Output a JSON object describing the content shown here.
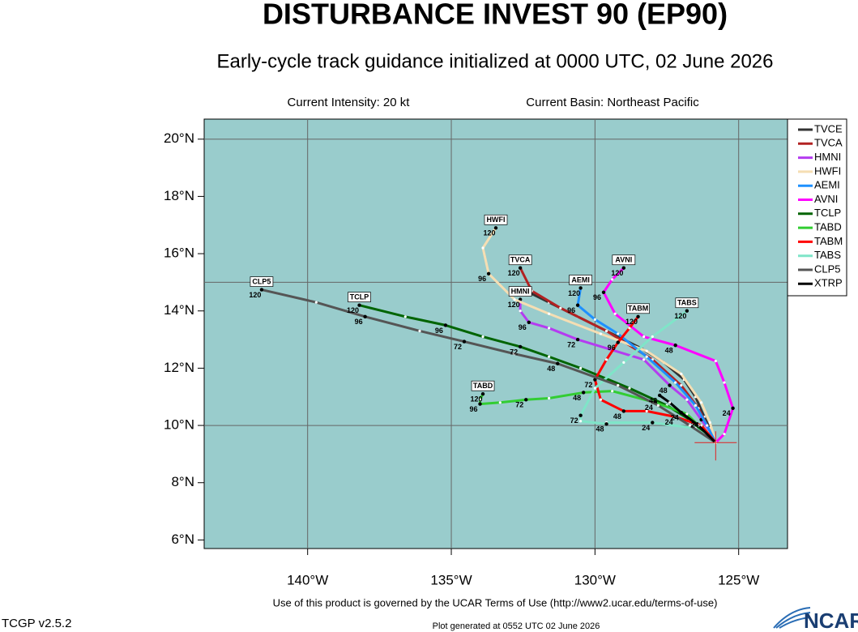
{
  "chart_data": {
    "type": "track-map",
    "title": "DISTURBANCE INVEST 90 (EP90)",
    "subtitle": "Early-cycle track guidance initialized at 0000 UTC, 02 June 2026",
    "intensity": "Current Intensity: 20 kt",
    "basin": "Current Basin: Northeast Pacific",
    "terms": "Use of this product is governed by the UCAR Terms of Use (http://www2.ucar.edu/terms-of-use)",
    "version": "TCGP v2.5.2",
    "generated": "Plot generated at 0552 UTC   02 June 2026",
    "logo": "NCAR",
    "xlim": [
      -143.6,
      -123.3
    ],
    "ylim": [
      5.7,
      20.7
    ],
    "xticks": [
      {
        "value": -140,
        "label": "140°W"
      },
      {
        "value": -135,
        "label": "135°W"
      },
      {
        "value": -130,
        "label": "130°W"
      },
      {
        "value": -125,
        "label": "125°W"
      }
    ],
    "yticks": [
      {
        "value": 6,
        "label": "6°N"
      },
      {
        "value": 8,
        "label": "8°N"
      },
      {
        "value": 10,
        "label": "10°N"
      },
      {
        "value": 12,
        "label": "12°N"
      },
      {
        "value": 14,
        "label": "14°N"
      },
      {
        "value": 16,
        "label": "16°N"
      },
      {
        "value": 18,
        "label": "18°N"
      },
      {
        "value": 20,
        "label": "20°N"
      }
    ],
    "lat_grid": [
      10,
      15,
      20
    ],
    "current_position": {
      "lon": -125.8,
      "lat": 9.4
    },
    "models": [
      {
        "name": "TVCE",
        "color": "#333333",
        "track": [
          {
            "lon": -125.8,
            "lat": 9.4
          },
          {
            "lon": -126.0,
            "lat": 9.9
          },
          {
            "lon": -126.2,
            "lat": 10.3
          },
          {
            "lon": -126.5,
            "lat": 11.0
          },
          {
            "lon": -126.9,
            "lat": 11.6
          },
          {
            "lon": -127.6,
            "lat": 12.2
          },
          {
            "lon": -128.4,
            "lat": 12.7
          },
          {
            "lon": -129.6,
            "lat": 13.3
          },
          {
            "lon": -130.6,
            "lat": 13.8
          },
          {
            "lon": -131.6,
            "lat": 14.3
          },
          {
            "lon": -132.4,
            "lat": 14.7
          }
        ]
      },
      {
        "name": "TVCA",
        "color": "#b22222",
        "track": [
          {
            "lon": -125.8,
            "lat": 9.4
          },
          {
            "lon": -126.1,
            "lat": 10.0
          },
          {
            "lon": -126.4,
            "lat": 10.6
          },
          {
            "lon": -127.0,
            "lat": 11.4
          },
          {
            "lon": -128.0,
            "lat": 12.3
          },
          {
            "lon": -129.6,
            "lat": 13.3
          },
          {
            "lon": -131.2,
            "lat": 14.1
          },
          {
            "lon": -132.2,
            "lat": 14.7
          },
          {
            "lon": -132.6,
            "lat": 15.5,
            "label": "120"
          }
        ]
      },
      {
        "name": "HMNI",
        "color": "#b43cf0",
        "track": [
          {
            "lon": -125.8,
            "lat": 9.4
          },
          {
            "lon": -126.0,
            "lat": 9.8
          },
          {
            "lon": -126.3,
            "lat": 10.2,
            "label": "24"
          },
          {
            "lon": -126.8,
            "lat": 10.9
          },
          {
            "lon": -127.4,
            "lat": 11.4,
            "label": "48"
          },
          {
            "lon": -128.3,
            "lat": 12.3
          },
          {
            "lon": -130.6,
            "lat": 13.0,
            "label": "72"
          },
          {
            "lon": -131.6,
            "lat": 13.4
          },
          {
            "lon": -132.3,
            "lat": 13.6,
            "label": "96"
          },
          {
            "lon": -132.6,
            "lat": 14.0
          },
          {
            "lon": -132.6,
            "lat": 14.4,
            "label": "120"
          }
        ]
      },
      {
        "name": "HWFI",
        "color": "#f5deb3",
        "track": [
          {
            "lon": -125.8,
            "lat": 9.4
          },
          {
            "lon": -126.0,
            "lat": 10.1
          },
          {
            "lon": -126.3,
            "lat": 10.8
          },
          {
            "lon": -127.0,
            "lat": 11.8
          },
          {
            "lon": -128.2,
            "lat": 12.6
          },
          {
            "lon": -129.8,
            "lat": 13.2
          },
          {
            "lon": -131.6,
            "lat": 13.9
          },
          {
            "lon": -132.8,
            "lat": 14.4
          },
          {
            "lon": -133.7,
            "lat": 15.3,
            "label": "96"
          },
          {
            "lon": -133.9,
            "lat": 16.2
          },
          {
            "lon": -133.45,
            "lat": 16.9,
            "label": "120"
          }
        ]
      },
      {
        "name": "AEMI",
        "color": "#1e90ff",
        "track": [
          {
            "lon": -125.8,
            "lat": 9.4
          },
          {
            "lon": -126.1,
            "lat": 10.0
          },
          {
            "lon": -126.5,
            "lat": 10.7
          },
          {
            "lon": -127.2,
            "lat": 11.5
          },
          {
            "lon": -128.2,
            "lat": 12.4
          },
          {
            "lon": -129.2,
            "lat": 13.2
          },
          {
            "lon": -130.0,
            "lat": 13.7
          },
          {
            "lon": -130.6,
            "lat": 14.2,
            "label": "96"
          },
          {
            "lon": -130.5,
            "lat": 14.8,
            "label": "120"
          }
        ]
      },
      {
        "name": "AVNI",
        "color": "#ff00ff",
        "track": [
          {
            "lon": -125.8,
            "lat": 9.4
          },
          {
            "lon": -125.5,
            "lat": 9.7
          },
          {
            "lon": -125.2,
            "lat": 10.6,
            "label": "24"
          },
          {
            "lon": -125.5,
            "lat": 11.5
          },
          {
            "lon": -125.8,
            "lat": 12.25
          },
          {
            "lon": -127.2,
            "lat": 12.8,
            "label": "48"
          },
          {
            "lon": -128.3,
            "lat": 13.1
          },
          {
            "lon": -129.3,
            "lat": 13.9
          },
          {
            "lon": -129.7,
            "lat": 14.65,
            "label": "96"
          },
          {
            "lon": -129.4,
            "lat": 15.1
          },
          {
            "lon": -129.0,
            "lat": 15.5,
            "label": "120"
          }
        ]
      },
      {
        "name": "TCLP",
        "color": "#006400",
        "track": [
          {
            "lon": -125.8,
            "lat": 9.4
          },
          {
            "lon": -126.7,
            "lat": 10.2
          },
          {
            "lon": -127.5,
            "lat": 10.7
          },
          {
            "lon": -128.8,
            "lat": 11.3
          },
          {
            "lon": -130.5,
            "lat": 12.0
          },
          {
            "lon": -131.6,
            "lat": 12.4
          },
          {
            "lon": -132.6,
            "lat": 12.75,
            "label": "72"
          },
          {
            "lon": -133.9,
            "lat": 13.1
          },
          {
            "lon": -135.2,
            "lat": 13.5,
            "label": "96"
          },
          {
            "lon": -136.6,
            "lat": 13.8
          },
          {
            "lon": -138.2,
            "lat": 14.2,
            "label": "120"
          }
        ]
      },
      {
        "name": "TABD",
        "color": "#32cd32",
        "track": [
          {
            "lon": -125.8,
            "lat": 9.4
          },
          {
            "lon": -126.8,
            "lat": 10.4
          },
          {
            "lon": -127.9,
            "lat": 10.8,
            "label": "24"
          },
          {
            "lon": -129.4,
            "lat": 11.2
          },
          {
            "lon": -130.4,
            "lat": 11.15,
            "label": "48"
          },
          {
            "lon": -131.6,
            "lat": 10.95
          },
          {
            "lon": -132.4,
            "lat": 10.9,
            "label": "72"
          },
          {
            "lon": -133.3,
            "lat": 10.8
          },
          {
            "lon": -134.0,
            "lat": 10.75,
            "label": "96"
          },
          {
            "lon": -134.0,
            "lat": 10.9
          },
          {
            "lon": -133.9,
            "lat": 11.1,
            "label": "120"
          }
        ]
      },
      {
        "name": "TABM",
        "color": "#ff0000",
        "track": [
          {
            "lon": -125.8,
            "lat": 9.4
          },
          {
            "lon": -126.3,
            "lat": 10.0
          },
          {
            "lon": -127.2,
            "lat": 10.3,
            "label": "24"
          },
          {
            "lon": -128.2,
            "lat": 10.5
          },
          {
            "lon": -129.0,
            "lat": 10.5,
            "label": "48"
          },
          {
            "lon": -129.8,
            "lat": 10.9
          },
          {
            "lon": -130.0,
            "lat": 11.6,
            "label": "72"
          },
          {
            "lon": -129.6,
            "lat": 12.3
          },
          {
            "lon": -129.2,
            "lat": 12.9,
            "label": "96"
          },
          {
            "lon": -128.8,
            "lat": 13.4
          },
          {
            "lon": -128.5,
            "lat": 13.8,
            "label": "120"
          }
        ]
      },
      {
        "name": "TABS",
        "color": "#7fe5c8",
        "track": [
          {
            "lon": -125.8,
            "lat": 9.4
          },
          {
            "lon": -126.5,
            "lat": 9.9
          },
          {
            "lon": -128.0,
            "lat": 10.1,
            "label": "24"
          },
          {
            "lon": -129.6,
            "lat": 10.1
          },
          {
            "lon": -129.6,
            "lat": 10.05,
            "label": "48"
          },
          {
            "lon": -130.5,
            "lat": 10.15
          },
          {
            "lon": -130.5,
            "lat": 10.35,
            "label": "72"
          },
          {
            "lon": -130.0,
            "lat": 11.3
          },
          {
            "lon": -129.0,
            "lat": 12.2
          },
          {
            "lon": -128.0,
            "lat": 13.1
          },
          {
            "lon": -126.8,
            "lat": 14.0,
            "label": "120"
          }
        ]
      },
      {
        "name": "CLP5",
        "color": "#555555",
        "track": [
          {
            "lon": -125.8,
            "lat": 9.4
          },
          {
            "lon": -126.7,
            "lat": 10.0
          },
          {
            "lon": -127.8,
            "lat": 10.7
          },
          {
            "lon": -129.2,
            "lat": 11.4
          },
          {
            "lon": -131.3,
            "lat": 12.16,
            "label": "48"
          },
          {
            "lon": -132.8,
            "lat": 12.5
          },
          {
            "lon": -134.55,
            "lat": 12.93,
            "label": "72"
          },
          {
            "lon": -136.1,
            "lat": 13.3
          },
          {
            "lon": -138.0,
            "lat": 13.8,
            "label": "96"
          },
          {
            "lon": -139.7,
            "lat": 14.3
          },
          {
            "lon": -141.6,
            "lat": 14.74,
            "label": "120"
          }
        ]
      },
      {
        "name": "XTRP",
        "color": "#000000",
        "track": [
          {
            "lon": -125.8,
            "lat": 9.4
          },
          {
            "lon": -126.4,
            "lat": 10.0
          },
          {
            "lon": -127.0,
            "lat": 10.45,
            "label": "24"
          },
          {
            "lon": -127.4,
            "lat": 10.8
          },
          {
            "lon": -127.75,
            "lat": 11.05,
            "label": "48"
          }
        ]
      }
    ]
  }
}
